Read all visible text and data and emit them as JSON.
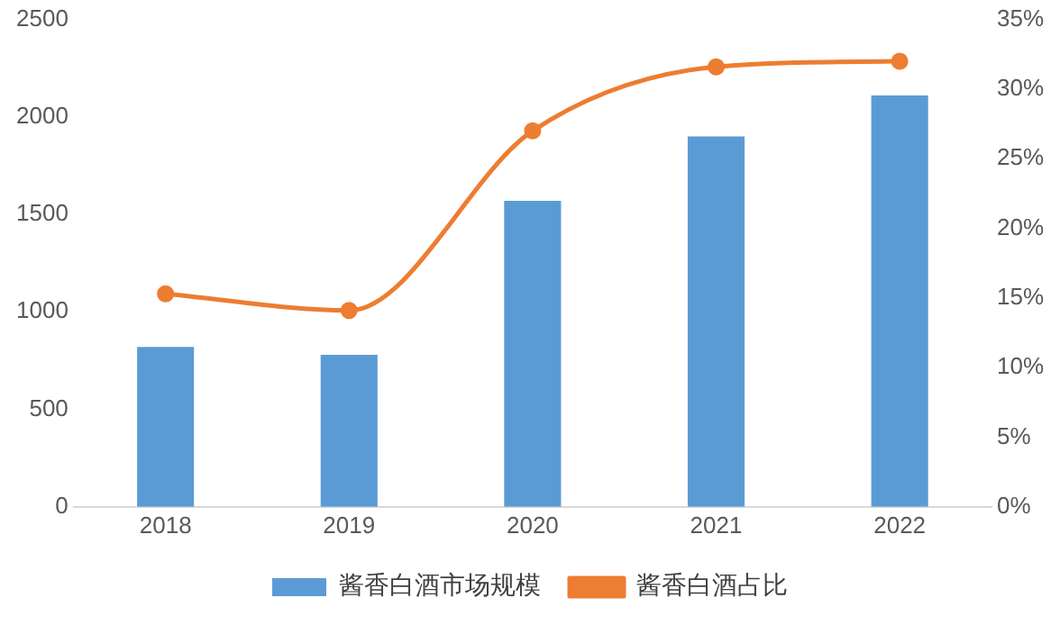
{
  "chart_data": {
    "type": "bar",
    "categories": [
      "2018",
      "2019",
      "2020",
      "2021",
      "2022"
    ],
    "series": [
      {
        "name": "酱香白酒市场规模",
        "color": "#5b9bd5",
        "values": [
          820,
          780,
          1570,
          1900,
          2110
        ]
      },
      {
        "name": "酱香白酒占比",
        "type": "line",
        "axis": "y2",
        "color": "#ed7d31",
        "values": [
          15.3,
          14.1,
          27.0,
          31.6,
          32.0
        ]
      }
    ],
    "ylim": [
      0,
      2500
    ],
    "yticks": [
      0,
      500,
      1000,
      1500,
      2000,
      2500
    ],
    "y2lim": [
      0,
      35
    ],
    "y2ticks": [
      {
        "value": 0,
        "label": "0%"
      },
      {
        "value": 5,
        "label": "5%"
      },
      {
        "value": 10,
        "label": "10%"
      },
      {
        "value": 15,
        "label": "15%"
      },
      {
        "value": 20,
        "label": "20%"
      },
      {
        "value": 25,
        "label": "25%"
      },
      {
        "value": 30,
        "label": "30%"
      },
      {
        "value": 35,
        "label": "35%"
      }
    ],
    "grid": false,
    "legend": "bottom",
    "marker": "circle"
  }
}
